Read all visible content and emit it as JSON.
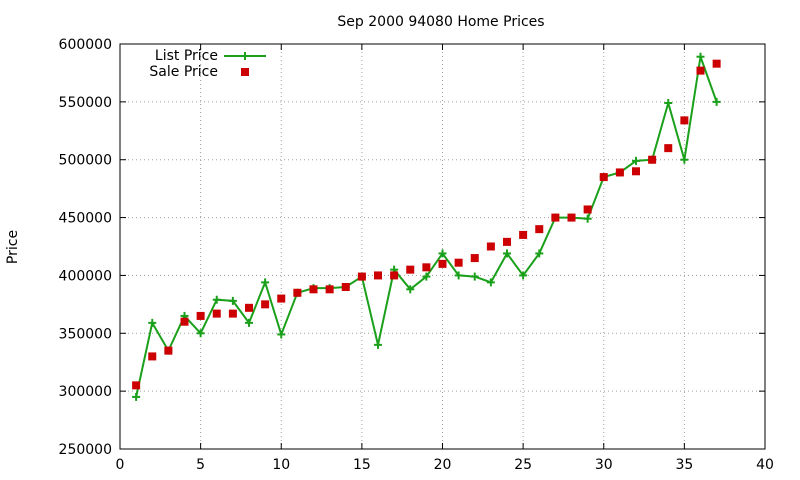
{
  "chart_data": {
    "type": "line",
    "title": "Sep 2000 94080 Home Prices",
    "xlabel": "",
    "ylabel": "Price",
    "xlim": [
      0,
      40
    ],
    "ylim": [
      250000,
      600000
    ],
    "xticks": [
      0,
      5,
      10,
      15,
      20,
      25,
      30,
      35,
      40
    ],
    "yticks": [
      250000,
      300000,
      350000,
      400000,
      450000,
      500000,
      550000,
      600000
    ],
    "grid": true,
    "legend_position": "top-left",
    "series": [
      {
        "name": "List Price",
        "style": "line+plus",
        "color": "#1aa01a",
        "points": [
          [
            1,
            295000
          ],
          [
            2,
            359000
          ],
          [
            3,
            335000
          ],
          [
            4,
            365000
          ],
          [
            5,
            350000
          ],
          [
            6,
            379000
          ],
          [
            7,
            378000
          ],
          [
            8,
            359000
          ],
          [
            9,
            394000
          ],
          [
            10,
            349000
          ],
          [
            11,
            385000
          ],
          [
            12,
            389000
          ],
          [
            13,
            389000
          ],
          [
            14,
            390000
          ],
          [
            15,
            399000
          ],
          [
            16,
            340000
          ],
          [
            17,
            405000
          ],
          [
            18,
            388000
          ],
          [
            19,
            399000
          ],
          [
            20,
            419000
          ],
          [
            21,
            400000
          ],
          [
            22,
            399000
          ],
          [
            23,
            394000
          ],
          [
            24,
            419000
          ],
          [
            25,
            400000
          ],
          [
            26,
            419000
          ],
          [
            27,
            450000
          ],
          [
            28,
            450000
          ],
          [
            29,
            449000
          ],
          [
            30,
            485000
          ],
          [
            31,
            489000
          ],
          [
            32,
            499000
          ],
          [
            33,
            500000
          ],
          [
            34,
            549000
          ],
          [
            35,
            500000
          ],
          [
            36,
            589000
          ],
          [
            37,
            550000
          ]
        ]
      },
      {
        "name": "Sale Price",
        "style": "square",
        "color": "#cc0000",
        "points": [
          [
            1,
            305000
          ],
          [
            2,
            330000
          ],
          [
            3,
            335000
          ],
          [
            4,
            360000
          ],
          [
            5,
            365000
          ],
          [
            6,
            367000
          ],
          [
            7,
            367000
          ],
          [
            8,
            372000
          ],
          [
            9,
            375000
          ],
          [
            10,
            380000
          ],
          [
            11,
            385000
          ],
          [
            12,
            388000
          ],
          [
            13,
            388000
          ],
          [
            14,
            390000
          ],
          [
            15,
            399000
          ],
          [
            16,
            400000
          ],
          [
            17,
            400000
          ],
          [
            18,
            405000
          ],
          [
            19,
            407000
          ],
          [
            20,
            410000
          ],
          [
            21,
            411000
          ],
          [
            22,
            415000
          ],
          [
            23,
            425000
          ],
          [
            24,
            429000
          ],
          [
            25,
            435000
          ],
          [
            26,
            440000
          ],
          [
            27,
            450000
          ],
          [
            28,
            450000
          ],
          [
            29,
            457000
          ],
          [
            30,
            485000
          ],
          [
            31,
            489000
          ],
          [
            32,
            490000
          ],
          [
            33,
            500000
          ],
          [
            34,
            510000
          ],
          [
            35,
            534000
          ],
          [
            36,
            577000
          ],
          [
            37,
            583000
          ]
        ]
      }
    ]
  }
}
